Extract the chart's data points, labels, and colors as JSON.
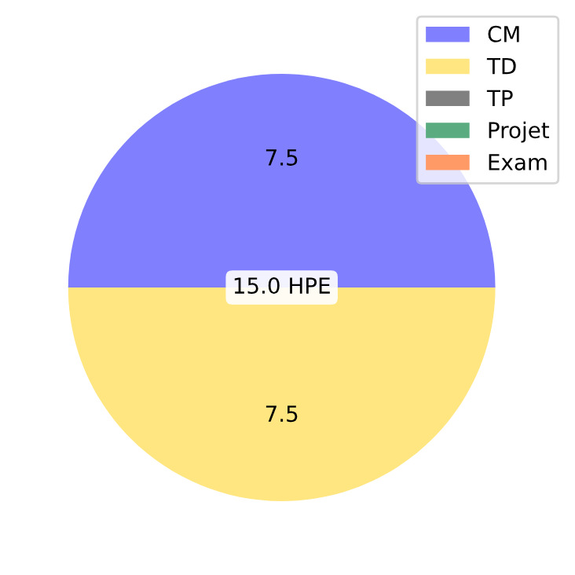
{
  "chart_data": {
    "type": "pie",
    "categories": [
      "CM",
      "TD",
      "TP",
      "Projet",
      "Exam"
    ],
    "values": [
      7.5,
      7.5,
      0,
      0,
      0
    ],
    "colors": [
      "#8080ff",
      "#ffe680",
      "#808080",
      "#5aab80",
      "#ff9966"
    ],
    "value_labels": [
      "7.5",
      "7.5",
      null,
      null,
      null
    ],
    "annotations": [
      "15.0 HPE"
    ],
    "legend": "top right"
  }
}
